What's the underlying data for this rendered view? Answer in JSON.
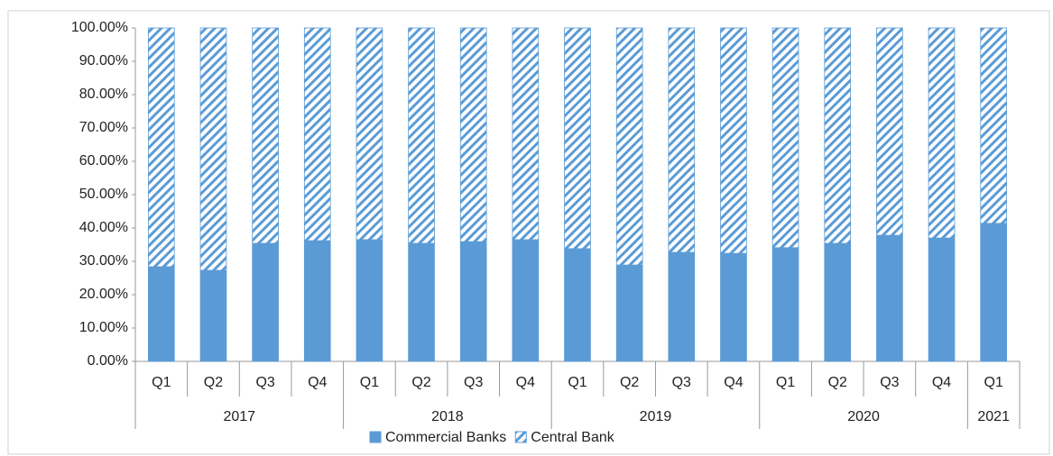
{
  "chart_data": {
    "type": "stacked_bar",
    "groups": [
      {
        "name": "2017",
        "categories": [
          "Q1",
          "Q2",
          "Q3",
          "Q4"
        ]
      },
      {
        "name": "2018",
        "categories": [
          "Q1",
          "Q2",
          "Q3",
          "Q4"
        ]
      },
      {
        "name": "2019",
        "categories": [
          "Q1",
          "Q2",
          "Q3",
          "Q4"
        ]
      },
      {
        "name": "2020",
        "categories": [
          "Q1",
          "Q2",
          "Q3",
          "Q4"
        ]
      },
      {
        "name": "2021",
        "categories": [
          "Q1"
        ]
      }
    ],
    "series": [
      {
        "name": "Commercial Banks",
        "color": "#5b9bd5",
        "pattern": "solid",
        "values": [
          28.4,
          27.3,
          35.4,
          36.2,
          36.5,
          35.4,
          35.9,
          36.5,
          33.8,
          28.9,
          32.7,
          32.4,
          34.1,
          35.4,
          37.8,
          37.0,
          41.4
        ]
      },
      {
        "name": "Central Bank",
        "color": "#5b9bd5",
        "pattern": "hatch",
        "values": [
          71.6,
          72.7,
          64.6,
          63.8,
          63.5,
          64.6,
          64.1,
          63.5,
          66.2,
          71.1,
          67.3,
          67.6,
          65.9,
          64.6,
          62.2,
          63.0,
          58.6
        ]
      }
    ],
    "ylim": [
      0,
      100
    ],
    "yticks": [
      {
        "value": 0,
        "label": "0.00%"
      },
      {
        "value": 10,
        "label": "10.00%"
      },
      {
        "value": 20,
        "label": "20.00%"
      },
      {
        "value": 30,
        "label": "30.00%"
      },
      {
        "value": 40,
        "label": "40.00%"
      },
      {
        "value": 50,
        "label": "50.00%"
      },
      {
        "value": 60,
        "label": "60.00%"
      },
      {
        "value": 70,
        "label": "70.00%"
      },
      {
        "value": 80,
        "label": "80.00%"
      },
      {
        "value": 90,
        "label": "90.00%"
      },
      {
        "value": 100,
        "label": "100.00%"
      }
    ],
    "grid": false
  }
}
